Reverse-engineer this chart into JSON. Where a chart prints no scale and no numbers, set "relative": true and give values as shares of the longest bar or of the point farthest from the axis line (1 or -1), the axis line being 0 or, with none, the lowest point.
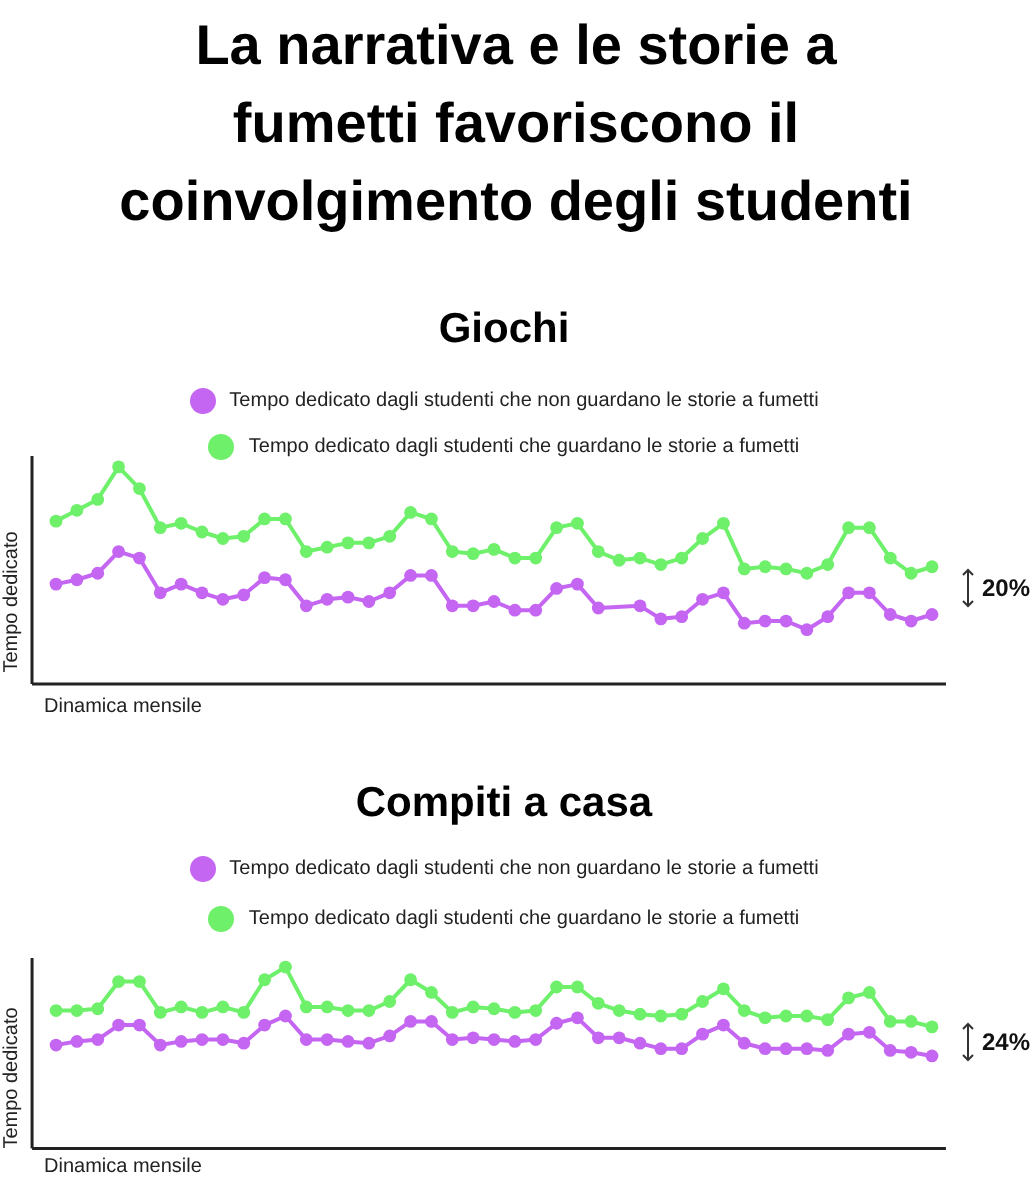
{
  "chart_data": [
    {
      "type": "line",
      "title": "La narrativa e le storie a fumetti favoriscono il coinvolgimento degli studenti",
      "subtitle": "Giochi",
      "xlabel": "Dinamica mensile",
      "ylabel": "Tempo dedicato",
      "relative": true,
      "legend": "top",
      "marker": "circle",
      "annotations": [
        "20%"
      ],
      "categories": [
        null,
        null,
        null,
        null,
        null,
        null,
        null,
        null,
        null,
        null,
        null,
        null,
        null,
        null,
        null,
        null,
        null,
        null,
        null,
        null,
        null,
        null,
        null,
        null,
        null,
        null,
        null,
        null,
        null,
        null,
        null,
        null,
        null,
        null,
        null,
        null,
        null,
        null,
        null,
        null,
        null,
        null,
        null
      ],
      "series": [
        {
          "name": "Tempo dedicato dagli studenti che non guardano le storie a fumetti",
          "color": "#c466f2",
          "values": [
            0.46,
            0.48,
            0.51,
            0.61,
            0.58,
            0.42,
            0.46,
            0.42,
            0.39,
            0.41,
            0.49,
            0.48,
            0.36,
            0.39,
            0.4,
            0.38,
            0.42,
            0.5,
            0.5,
            0.36,
            0.36,
            0.38,
            0.34,
            0.34,
            0.44,
            0.46,
            0.35,
            null,
            0.36,
            0.3,
            0.31,
            0.39,
            0.42,
            0.28,
            0.29,
            0.29,
            0.25,
            0.31,
            0.42,
            0.42,
            0.32,
            0.29,
            0.32
          ]
        },
        {
          "name": "Tempo dedicato dagli studenti che guardano le storie a fumetti",
          "color": "#6ef06a",
          "values": [
            0.75,
            0.8,
            0.85,
            1.0,
            0.9,
            0.72,
            0.74,
            0.7,
            0.67,
            0.68,
            0.76,
            0.76,
            0.61,
            0.63,
            0.65,
            0.65,
            0.68,
            0.79,
            0.76,
            0.61,
            0.6,
            0.62,
            0.58,
            0.58,
            0.72,
            0.74,
            0.61,
            0.57,
            0.58,
            0.55,
            0.58,
            0.67,
            0.74,
            0.53,
            0.54,
            0.53,
            0.51,
            0.55,
            0.72,
            0.72,
            0.58,
            0.51,
            0.54
          ]
        }
      ]
    },
    {
      "type": "line",
      "title": "Compiti a casa",
      "xlabel": "Dinamica mensile",
      "ylabel": "Tempo dedicato",
      "relative": true,
      "legend": "top",
      "marker": "circle",
      "annotations": [
        "24%"
      ],
      "categories": [
        null,
        null,
        null,
        null,
        null,
        null,
        null,
        null,
        null,
        null,
        null,
        null,
        null,
        null,
        null,
        null,
        null,
        null,
        null,
        null,
        null,
        null,
        null,
        null,
        null,
        null,
        null,
        null,
        null,
        null,
        null,
        null,
        null,
        null,
        null,
        null,
        null,
        null,
        null,
        null,
        null,
        null,
        null
      ],
      "series": [
        {
          "name": "Tempo dedicato dagli studenti che non guardano le storie a fumetti",
          "color": "#c466f2",
          "values": [
            0.57,
            0.59,
            0.6,
            0.68,
            0.68,
            0.57,
            0.59,
            0.6,
            0.6,
            0.58,
            0.68,
            0.73,
            0.6,
            0.6,
            0.59,
            0.58,
            0.62,
            0.7,
            0.7,
            0.6,
            0.61,
            0.6,
            0.59,
            0.6,
            0.69,
            0.72,
            0.61,
            0.61,
            0.58,
            0.55,
            0.55,
            0.63,
            0.68,
            0.58,
            0.55,
            0.55,
            0.55,
            0.54,
            0.63,
            0.64,
            0.54,
            0.53,
            0.51
          ]
        },
        {
          "name": "Tempo dedicato dagli studenti che guardano le storie a fumetti",
          "color": "#6ef06a",
          "values": [
            0.76,
            0.76,
            0.77,
            0.92,
            0.92,
            0.75,
            0.78,
            0.75,
            0.78,
            0.75,
            0.93,
            1.0,
            0.78,
            0.78,
            0.76,
            0.76,
            0.81,
            0.93,
            0.86,
            0.75,
            0.78,
            0.77,
            0.75,
            0.76,
            0.89,
            0.89,
            0.8,
            0.76,
            0.74,
            0.73,
            0.74,
            0.81,
            0.88,
            0.76,
            0.72,
            0.73,
            0.73,
            0.71,
            0.83,
            0.86,
            0.7,
            0.7,
            0.67
          ]
        }
      ]
    }
  ]
}
